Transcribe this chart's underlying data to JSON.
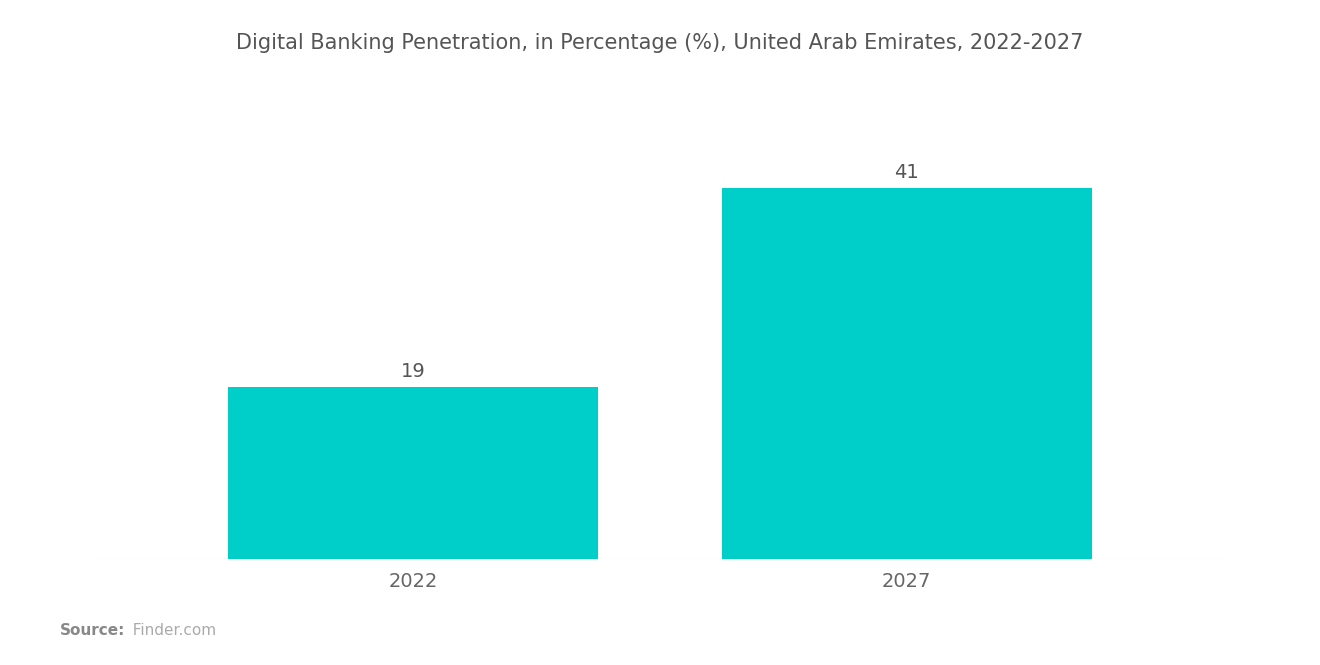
{
  "title": "Digital Banking Penetration, in Percentage (%), United Arab Emirates, 2022-2027",
  "categories": [
    "2022",
    "2027"
  ],
  "values": [
    19,
    41
  ],
  "bar_color": "#00CEC9",
  "background_color": "#ffffff",
  "title_fontsize": 15,
  "label_fontsize": 14,
  "value_fontsize": 14,
  "source_label": "Source:",
  "source_value": "  Finder.com",
  "ylim": [
    0,
    50
  ],
  "bar_width": 0.75
}
